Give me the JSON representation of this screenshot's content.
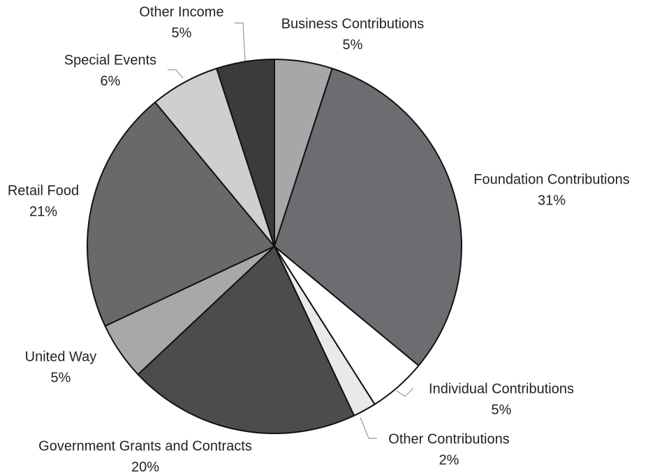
{
  "chart_data": {
    "type": "pie",
    "categories": [
      "Business Contributions",
      "Foundation Contributions",
      "Individual Contributions",
      "Other Contributions",
      "Government Grants and Contracts",
      "United Way",
      "Retail Food",
      "Special Events",
      "Other Income"
    ],
    "values": [
      5,
      31,
      5,
      2,
      20,
      5,
      21,
      6,
      5
    ],
    "value_labels": [
      "5%",
      "31%",
      "5%",
      "2%",
      "20%",
      "5%",
      "21%",
      "6%",
      "5%"
    ],
    "colors": [
      "#a7a7a9",
      "#6d6d71",
      "#ffffff",
      "#e9e9ea",
      "#4c4c4f",
      "#a8a8aa",
      "#69696c",
      "#cfcfd1",
      "#3b3b3b"
    ]
  }
}
